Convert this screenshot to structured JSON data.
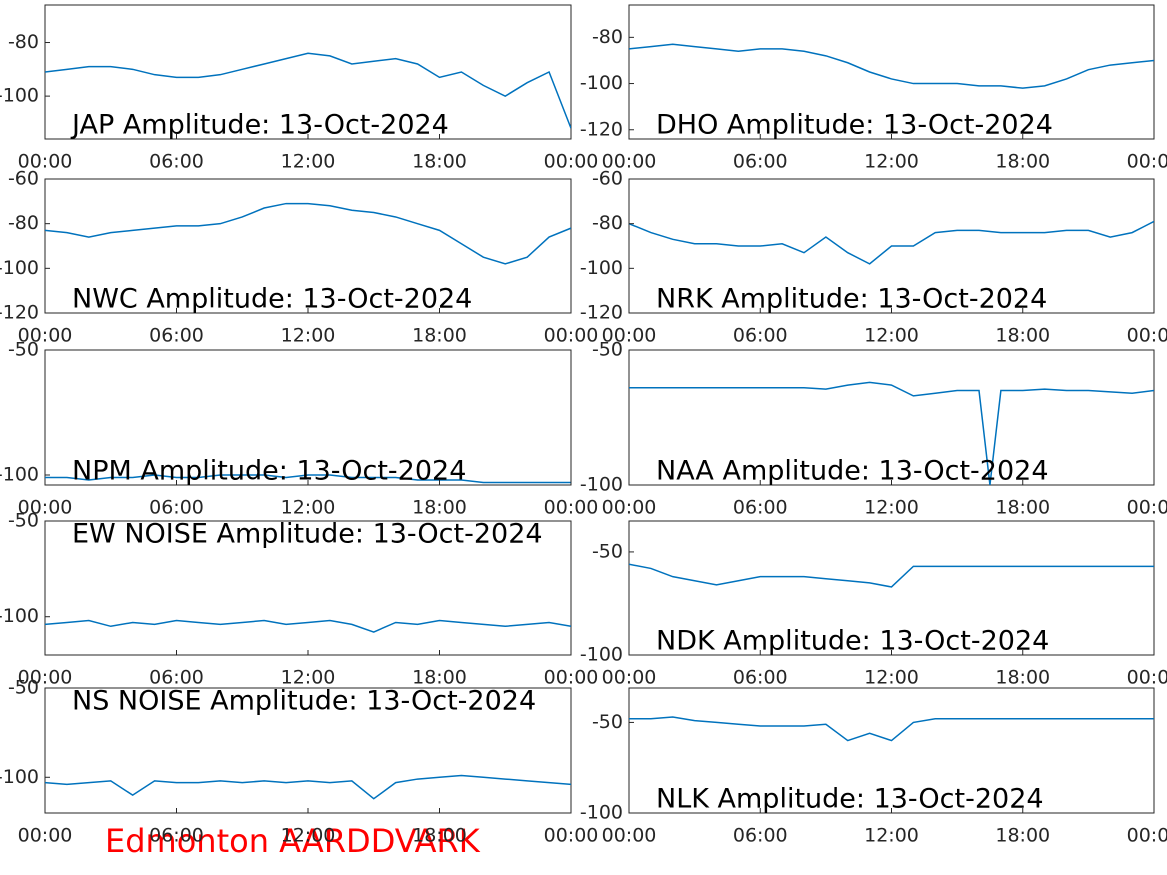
{
  "chart_data": [
    {
      "type": "line",
      "title": "JAP Amplitude: 13-Oct-2024",
      "title_corner": "lower left",
      "x": [
        0,
        1,
        2,
        3,
        4,
        5,
        6,
        7,
        8,
        9,
        10,
        11,
        12,
        13,
        14,
        15,
        16,
        17,
        18,
        19,
        20,
        21,
        22,
        23,
        24
      ],
      "series": [
        {
          "color": "#0072bd",
          "values": [
            -91,
            -90,
            -89,
            -89,
            -90,
            -92,
            -93,
            -93,
            -92,
            -90,
            -88,
            -86,
            -84,
            -85,
            -88,
            -87,
            -86,
            -88,
            -93,
            -91,
            -96,
            -100,
            -95,
            -91,
            -112
          ]
        }
      ],
      "xlim": [
        0,
        24
      ],
      "xticks": [
        {
          "value": 0,
          "label": "00:00"
        },
        {
          "value": 6,
          "label": "06:00"
        },
        {
          "value": 12,
          "label": "12:00"
        },
        {
          "value": 18,
          "label": "18:00"
        },
        {
          "value": 24,
          "label": "00:00"
        }
      ],
      "ylim": [
        -116,
        -66
      ],
      "yticks": [
        -100,
        -80
      ]
    },
    {
      "type": "line",
      "title": "DHO Amplitude: 13-Oct-2024",
      "title_corner": "lower left",
      "x": [
        0,
        1,
        2,
        3,
        4,
        5,
        6,
        7,
        8,
        9,
        10,
        11,
        12,
        13,
        14,
        15,
        16,
        17,
        18,
        19,
        20,
        21,
        22,
        23,
        24
      ],
      "series": [
        {
          "color": "#0072bd",
          "values": [
            -85,
            -84,
            -83,
            -84,
            -85,
            -86,
            -85,
            -85,
            -86,
            -88,
            -91,
            -95,
            -98,
            -100,
            -100,
            -100,
            -101,
            -101,
            -102,
            -101,
            -98,
            -94,
            -92,
            -91,
            -90
          ]
        }
      ],
      "xlim": [
        0,
        24
      ],
      "xticks": [
        {
          "value": 0,
          "label": "00:00"
        },
        {
          "value": 6,
          "label": "06:00"
        },
        {
          "value": 12,
          "label": "12:00"
        },
        {
          "value": 18,
          "label": "18:00"
        },
        {
          "value": 24,
          "label": "00:00"
        }
      ],
      "ylim": [
        -124,
        -66
      ],
      "yticks": [
        -120,
        -100,
        -80
      ]
    },
    {
      "type": "line",
      "title": "NWC Amplitude: 13-Oct-2024",
      "title_corner": "lower left",
      "x": [
        0,
        1,
        2,
        3,
        4,
        5,
        6,
        7,
        8,
        9,
        10,
        11,
        12,
        13,
        14,
        15,
        16,
        17,
        18,
        19,
        20,
        21,
        22,
        23,
        24
      ],
      "series": [
        {
          "color": "#0072bd",
          "values": [
            -83,
            -84,
            -86,
            -84,
            -83,
            -82,
            -81,
            -81,
            -80,
            -77,
            -73,
            -71,
            -71,
            -72,
            -74,
            -75,
            -77,
            -80,
            -83,
            -89,
            -95,
            -98,
            -95,
            -86,
            -82
          ]
        }
      ],
      "xlim": [
        0,
        24
      ],
      "xticks": [
        {
          "value": 0,
          "label": "00:00"
        },
        {
          "value": 6,
          "label": "06:00"
        },
        {
          "value": 12,
          "label": "12:00"
        },
        {
          "value": 18,
          "label": "18:00"
        },
        {
          "value": 24,
          "label": "00:00"
        }
      ],
      "ylim": [
        -120,
        -60
      ],
      "yticks": [
        -120,
        -100,
        -80,
        -60
      ]
    },
    {
      "type": "line",
      "title": "NRK Amplitude: 13-Oct-2024",
      "title_corner": "lower left",
      "x": [
        0,
        1,
        2,
        3,
        4,
        5,
        6,
        7,
        8,
        9,
        10,
        11,
        12,
        13,
        14,
        15,
        16,
        17,
        18,
        19,
        20,
        21,
        22,
        23,
        24
      ],
      "series": [
        {
          "color": "#0072bd",
          "values": [
            -80,
            -84,
            -87,
            -89,
            -89,
            -90,
            -90,
            -89,
            -93,
            -86,
            -93,
            -98,
            -90,
            -90,
            -84,
            -83,
            -83,
            -84,
            -84,
            -84,
            -83,
            -83,
            -86,
            -84,
            -79
          ]
        }
      ],
      "xlim": [
        0,
        24
      ],
      "xticks": [
        {
          "value": 0,
          "label": "00:00"
        },
        {
          "value": 6,
          "label": "06:00"
        },
        {
          "value": 12,
          "label": "12:00"
        },
        {
          "value": 18,
          "label": "18:00"
        },
        {
          "value": 24,
          "label": "00:00"
        }
      ],
      "ylim": [
        -120,
        -60
      ],
      "yticks": [
        -120,
        -100,
        -80,
        -60
      ]
    },
    {
      "type": "line",
      "title": "NPM Amplitude: 13-Oct-2024",
      "title_corner": "lower left",
      "x": [
        0,
        1,
        2,
        3,
        4,
        5,
        6,
        7,
        8,
        9,
        10,
        11,
        12,
        13,
        14,
        15,
        16,
        17,
        18,
        19,
        20,
        21,
        22,
        23,
        24
      ],
      "series": [
        {
          "color": "#0072bd",
          "values": [
            -101,
            -101,
            -102,
            -101,
            -101,
            -100,
            -101,
            -101,
            -100,
            -100,
            -100,
            -101,
            -100,
            -100,
            -101,
            -101,
            -101,
            -102,
            -102,
            -102,
            -103,
            -103,
            -103,
            -103,
            -103
          ]
        }
      ],
      "xlim": [
        0,
        24
      ],
      "xticks": [
        {
          "value": 0,
          "label": "00:00"
        },
        {
          "value": 6,
          "label": "06:00"
        },
        {
          "value": 12,
          "label": "12:00"
        },
        {
          "value": 18,
          "label": "18:00"
        },
        {
          "value": 24,
          "label": "00:00"
        }
      ],
      "ylim": [
        -104,
        -50
      ],
      "yticks": [
        -100,
        -50
      ]
    },
    {
      "type": "line",
      "title": "NAA Amplitude: 13-Oct-2024",
      "title_corner": "lower left",
      "x": [
        0,
        1,
        2,
        3,
        4,
        5,
        6,
        7,
        8,
        9,
        10,
        11,
        12,
        13,
        14,
        15,
        16,
        16.5,
        17,
        18,
        19,
        20,
        21,
        22,
        23,
        24
      ],
      "series": [
        {
          "color": "#0072bd",
          "values": [
            -64,
            -64,
            -64,
            -64,
            -64,
            -64,
            -64,
            -64,
            -64,
            -64.5,
            -63,
            -62,
            -63,
            -67,
            -66,
            -65,
            -65,
            -100,
            -65,
            -65,
            -64.5,
            -65,
            -65,
            -65.5,
            -66,
            -65
          ]
        }
      ],
      "xlim": [
        0,
        24
      ],
      "xticks": [
        {
          "value": 0,
          "label": "00:00"
        },
        {
          "value": 6,
          "label": "06:00"
        },
        {
          "value": 12,
          "label": "12:00"
        },
        {
          "value": 18,
          "label": "18:00"
        },
        {
          "value": 24,
          "label": "00:00"
        }
      ],
      "ylim": [
        -100,
        -50
      ],
      "yticks": [
        -100,
        -50
      ]
    },
    {
      "type": "line",
      "title": "EW NOISE Amplitude: 13-Oct-2024",
      "title_corner": "upper left",
      "x": [
        0,
        1,
        2,
        3,
        4,
        5,
        6,
        7,
        8,
        9,
        10,
        11,
        12,
        13,
        14,
        15,
        16,
        17,
        18,
        19,
        20,
        21,
        22,
        23,
        24
      ],
      "series": [
        {
          "color": "#0072bd",
          "values": [
            -104,
            -103,
            -102,
            -105,
            -103,
            -104,
            -102,
            -103,
            -104,
            -103,
            -102,
            -104,
            -103,
            -102,
            -104,
            -108,
            -103,
            -104,
            -102,
            -103,
            -104,
            -105,
            -104,
            -103,
            -105
          ]
        }
      ],
      "xlim": [
        0,
        24
      ],
      "xticks": [
        {
          "value": 0,
          "label": "00:00"
        },
        {
          "value": 6,
          "label": "06:00"
        },
        {
          "value": 12,
          "label": "12:00"
        },
        {
          "value": 18,
          "label": "18:00"
        },
        {
          "value": 24,
          "label": "00:00"
        }
      ],
      "ylim": [
        -120,
        -50
      ],
      "yticks": [
        -100,
        -50
      ]
    },
    {
      "type": "line",
      "title": "NDK Amplitude: 13-Oct-2024",
      "title_corner": "lower left",
      "x": [
        0,
        1,
        2,
        3,
        4,
        5,
        6,
        7,
        8,
        9,
        10,
        11,
        12,
        13,
        14,
        15,
        16,
        17,
        18,
        19,
        20,
        21,
        22,
        23,
        24
      ],
      "series": [
        {
          "color": "#0072bd",
          "values": [
            -56,
            -58,
            -62,
            -64,
            -66,
            -64,
            -62,
            -62,
            -62,
            -63,
            -64,
            -65,
            -67,
            -57,
            -57,
            -57,
            -57,
            -57,
            -57,
            -57,
            -57,
            -57,
            -57,
            -57,
            -57
          ]
        }
      ],
      "xlim": [
        0,
        24
      ],
      "xticks": [
        {
          "value": 0,
          "label": "00:00"
        },
        {
          "value": 6,
          "label": "06:00"
        },
        {
          "value": 12,
          "label": "12:00"
        },
        {
          "value": 18,
          "label": "18:00"
        },
        {
          "value": 24,
          "label": "00:00"
        }
      ],
      "ylim": [
        -100,
        -35
      ],
      "yticks": [
        -100,
        -50
      ]
    },
    {
      "type": "line",
      "title": "NS NOISE Amplitude: 13-Oct-2024",
      "title_corner": "upper left",
      "x": [
        0,
        1,
        2,
        3,
        4,
        5,
        6,
        7,
        8,
        9,
        10,
        11,
        12,
        13,
        14,
        15,
        16,
        17,
        18,
        19,
        20,
        21,
        22,
        23,
        24
      ],
      "series": [
        {
          "color": "#0072bd",
          "values": [
            -103,
            -104,
            -103,
            -102,
            -110,
            -102,
            -103,
            -103,
            -102,
            -103,
            -102,
            -103,
            -102,
            -103,
            -102,
            -112,
            -103,
            -101,
            -100,
            -99,
            -100,
            -101,
            -102,
            -103,
            -104
          ]
        }
      ],
      "xlim": [
        0,
        24
      ],
      "xticks": [
        {
          "value": 0,
          "label": "00:00"
        },
        {
          "value": 6,
          "label": "06:00"
        },
        {
          "value": 12,
          "label": "12:00"
        },
        {
          "value": 18,
          "label": "18:00"
        },
        {
          "value": 24,
          "label": "00:00"
        }
      ],
      "ylim": [
        -120,
        -50
      ],
      "yticks": [
        -100,
        -50
      ]
    },
    {
      "type": "line",
      "title": "NLK Amplitude: 13-Oct-2024",
      "title_corner": "lower left",
      "x": [
        0,
        1,
        2,
        3,
        4,
        5,
        6,
        7,
        8,
        9,
        10,
        11,
        12,
        13,
        14,
        15,
        16,
        17,
        18,
        19,
        20,
        21,
        22,
        23,
        24
      ],
      "series": [
        {
          "color": "#0072bd",
          "values": [
            -48,
            -48,
            -47,
            -49,
            -50,
            -51,
            -52,
            -52,
            -52,
            -51,
            -60,
            -56,
            -60,
            -50,
            -48,
            -48,
            -48,
            -48,
            -48,
            -48,
            -48,
            -48,
            -48,
            -48,
            -48
          ]
        }
      ],
      "xlim": [
        0,
        24
      ],
      "xticks": [
        {
          "value": 0,
          "label": "00:00"
        },
        {
          "value": 6,
          "label": "06:00"
        },
        {
          "value": 12,
          "label": "12:00"
        },
        {
          "value": 18,
          "label": "18:00"
        },
        {
          "value": 24,
          "label": "00:00"
        }
      ],
      "ylim": [
        -100,
        -31
      ],
      "yticks": [
        -100,
        -50
      ]
    }
  ],
  "footer": "Edmonton AARDDVARK"
}
